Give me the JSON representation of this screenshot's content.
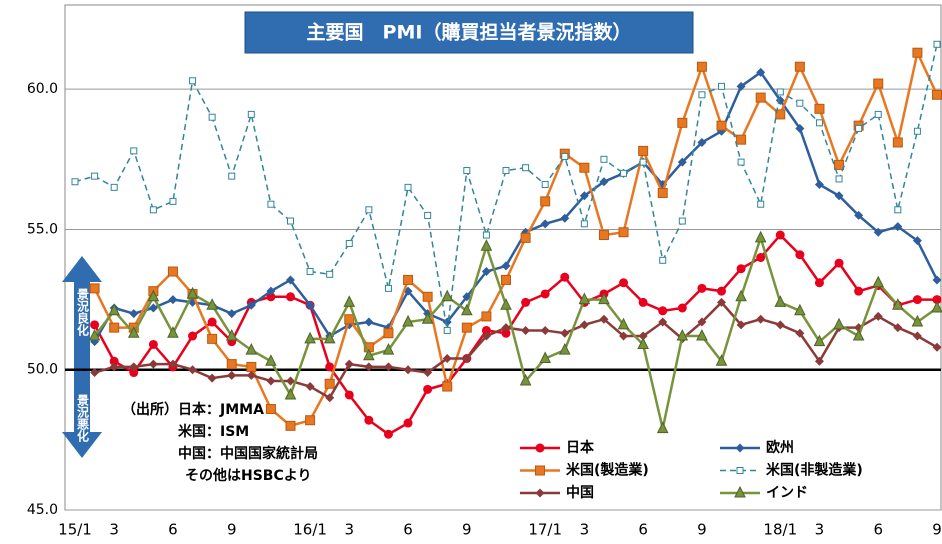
{
  "chart_data": {
    "type": "line",
    "title": "主要国　PMI（購買担当者景況指数）",
    "categories": [
      "15/1",
      null,
      "3",
      null,
      null,
      "6",
      null,
      null,
      "9",
      null,
      null,
      null,
      "16/1",
      null,
      "3",
      null,
      null,
      "6",
      null,
      null,
      "9",
      null,
      null,
      null,
      "17/1",
      null,
      "3",
      null,
      null,
      "6",
      null,
      null,
      "9",
      null,
      null,
      null,
      "18/1",
      null,
      "3",
      null,
      null,
      "6",
      null,
      null,
      "9"
    ],
    "ylim": [
      45,
      63
    ],
    "yticks": [
      {
        "value": 45,
        "label": "45.0"
      },
      {
        "value": 50,
        "label": "50.0"
      },
      {
        "value": 55,
        "label": "55.0"
      },
      {
        "value": 60,
        "label": "60.0"
      }
    ],
    "grid": true,
    "annotations": [
      "景況良化",
      "景況悪化",
      "（出所）日本：JMMA",
      "米国：ISM",
      "中国：中国国家統計局",
      "その他はHSBCより"
    ],
    "series": [
      {
        "name": "日本",
        "color": "#e8001c",
        "marker": "circle",
        "values": [
          null,
          51.6,
          50.3,
          49.9,
          50.9,
          50.1,
          51.2,
          51.7,
          51.0,
          52.4,
          52.6,
          52.6,
          52.3,
          50.1,
          49.1,
          48.2,
          47.7,
          48.1,
          49.3,
          49.5,
          50.4,
          51.4,
          51.3,
          52.4,
          52.7,
          53.3,
          52.4,
          52.7,
          53.1,
          52.4,
          52.1,
          52.2,
          52.9,
          52.8,
          53.6,
          54.0,
          54.8,
          54.1,
          53.1,
          53.8,
          52.8,
          53.0,
          52.3,
          52.5,
          52.5
        ]
      },
      {
        "name": "欧州",
        "color": "#2e5e9e",
        "marker": "diamond",
        "values": [
          null,
          51.0,
          52.2,
          52.0,
          52.2,
          52.5,
          52.4,
          52.3,
          52.0,
          52.3,
          52.8,
          53.2,
          52.3,
          51.2,
          51.6,
          51.7,
          51.5,
          52.8,
          52.0,
          51.7,
          52.6,
          53.5,
          53.7,
          54.9,
          55.2,
          55.4,
          56.2,
          56.7,
          57.0,
          57.4,
          56.6,
          57.4,
          58.1,
          58.5,
          60.1,
          60.6,
          59.6,
          58.6,
          56.6,
          56.2,
          55.5,
          54.9,
          55.1,
          54.6,
          53.2
        ]
      },
      {
        "name": "米国(製造業)",
        "color": "#e87722",
        "marker": "square",
        "values": [
          null,
          52.9,
          51.5,
          51.5,
          52.8,
          53.5,
          52.7,
          51.1,
          50.2,
          50.1,
          48.6,
          48.0,
          48.2,
          49.5,
          51.8,
          50.8,
          51.3,
          53.2,
          52.6,
          49.4,
          51.5,
          51.9,
          53.2,
          54.7,
          56.0,
          57.7,
          57.2,
          54.8,
          54.9,
          57.8,
          56.3,
          58.8,
          60.8,
          58.7,
          58.2,
          59.7,
          59.1,
          60.8,
          59.3,
          57.3,
          58.7,
          60.2,
          58.1,
          61.3,
          59.8
        ]
      },
      {
        "name": "米国(非製造業)",
        "color": "#31859c",
        "marker": "open-square",
        "dash": true,
        "values": [
          56.7,
          56.9,
          56.5,
          57.8,
          55.7,
          56.0,
          60.3,
          59.0,
          56.9,
          59.1,
          55.9,
          55.3,
          53.5,
          53.4,
          54.5,
          55.7,
          52.9,
          56.5,
          55.5,
          51.4,
          57.1,
          54.8,
          57.1,
          57.2,
          56.6,
          57.6,
          55.2,
          57.5,
          57.0,
          57.4,
          53.9,
          55.3,
          59.8,
          60.1,
          57.4,
          55.9,
          59.9,
          59.5,
          58.8,
          56.8,
          58.6,
          59.1,
          55.7,
          58.5,
          61.6
        ]
      },
      {
        "name": "中国",
        "color": "#8b3a3a",
        "marker": "diamond",
        "values": [
          null,
          49.9,
          50.1,
          50.1,
          50.2,
          50.2,
          50.0,
          49.7,
          49.8,
          49.8,
          49.6,
          49.6,
          49.4,
          49.0,
          50.2,
          50.1,
          50.1,
          50.0,
          49.9,
          50.4,
          50.4,
          51.2,
          51.5,
          51.4,
          51.4,
          51.3,
          51.6,
          51.8,
          51.2,
          51.2,
          51.7,
          51.1,
          51.7,
          52.4,
          51.6,
          51.8,
          51.6,
          51.3,
          50.3,
          51.5,
          51.5,
          51.9,
          51.5,
          51.2,
          50.8
        ]
      },
      {
        "name": "インド",
        "color": "#77933c",
        "marker": "triangle",
        "values": [
          null,
          51.2,
          52.1,
          51.3,
          52.6,
          51.3,
          52.7,
          52.3,
          51.2,
          50.7,
          50.3,
          49.1,
          51.1,
          51.1,
          52.4,
          50.5,
          50.7,
          51.7,
          51.8,
          52.6,
          52.1,
          54.4,
          52.3,
          49.6,
          50.4,
          50.7,
          52.5,
          52.5,
          51.6,
          50.9,
          47.9,
          51.2,
          51.2,
          50.3,
          52.6,
          54.7,
          52.4,
          52.1,
          51.0,
          51.6,
          51.2,
          53.1,
          52.3,
          51.7,
          52.2
        ]
      }
    ]
  }
}
